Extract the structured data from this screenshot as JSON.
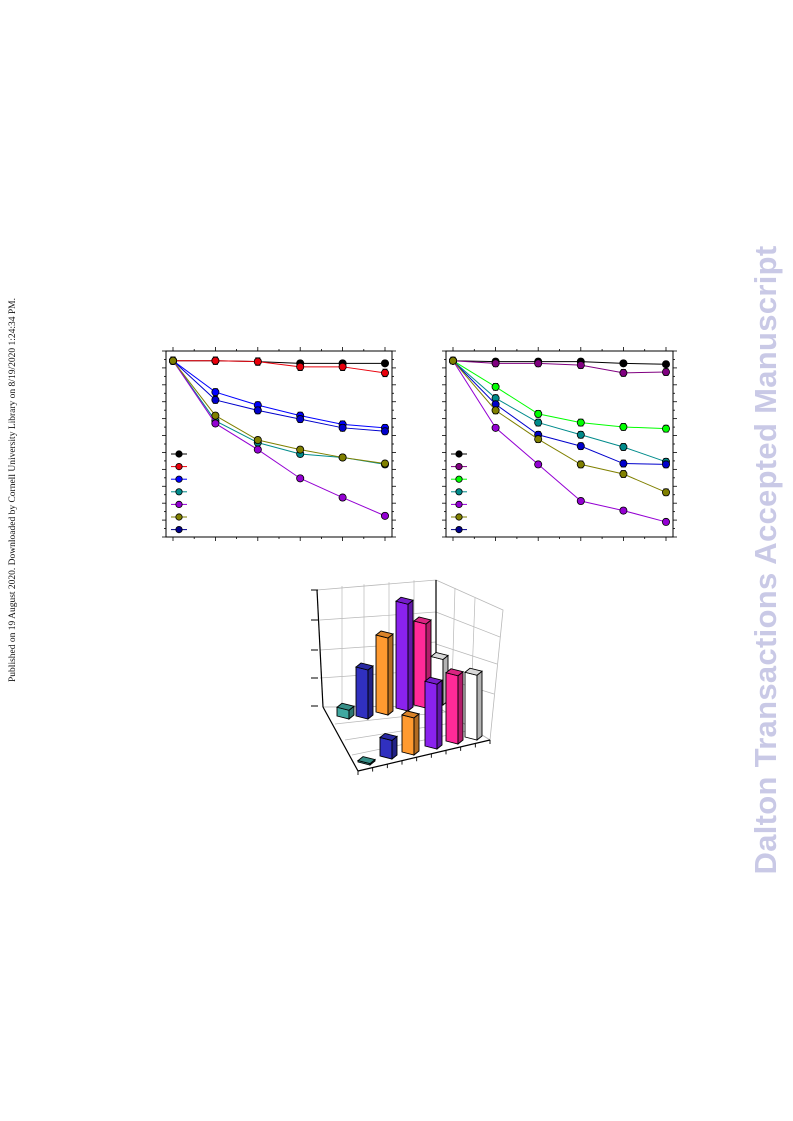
{
  "side_note": "Published on 19 August 2020. Downloaded by Cornell University Library on 8/19/2020 1:24:34 PM.",
  "watermark": "Dalton Transactions Accepted Manuscript",
  "chart_data": [
    {
      "type": "line",
      "x": [
        0,
        1,
        2,
        3,
        4,
        5
      ],
      "ylim": [
        0,
        1.05
      ],
      "grid": false,
      "legend": "bottom-left",
      "series": [
        {
          "color": "#000000",
          "values": [
            1.0,
            1.0,
            0.995,
            0.985,
            0.985,
            0.985
          ],
          "err": 0.015
        },
        {
          "color": "#e8000b",
          "values": [
            1.0,
            1.0,
            0.995,
            0.965,
            0.965,
            0.93
          ],
          "err": 0.02
        },
        {
          "color": "#0000ff",
          "values": [
            1.0,
            0.82,
            0.745,
            0.685,
            0.635,
            0.615
          ],
          "err": 0.018
        },
        {
          "color": "#0000cc",
          "values": [
            1.0,
            0.775,
            0.715,
            0.665,
            0.615,
            0.595
          ],
          "err": 0.018
        },
        {
          "color": "#008b8b",
          "values": [
            1.0,
            0.655,
            0.53,
            0.465,
            0.445,
            0.405
          ],
          "err": 0.015
        },
        {
          "color": "#9400d3",
          "values": [
            1.0,
            0.64,
            0.49,
            0.325,
            0.215,
            0.11
          ],
          "err": 0.015
        },
        {
          "color": "#808000",
          "values": [
            1.0,
            0.685,
            0.545,
            0.49,
            0.445,
            0.41
          ],
          "err": 0.015
        }
      ],
      "legend_markers": [
        "#000000",
        "#e8000b",
        "#0000ff",
        "#008b8b",
        "#9400d3",
        "#808000",
        "#00008b"
      ]
    },
    {
      "type": "line",
      "x": [
        0,
        1,
        2,
        3,
        4,
        5
      ],
      "ylim": [
        0,
        1.05
      ],
      "grid": false,
      "legend": "bottom-left",
      "series": [
        {
          "color": "#000000",
          "values": [
            1.0,
            0.995,
            0.995,
            0.995,
            0.985,
            0.98
          ],
          "err": 0.015
        },
        {
          "color": "#800080",
          "values": [
            1.0,
            0.985,
            0.985,
            0.975,
            0.93,
            0.935
          ],
          "err": 0.018
        },
        {
          "color": "#00ff00",
          "values": [
            1.0,
            0.85,
            0.695,
            0.645,
            0.62,
            0.61
          ],
          "err": 0.018
        },
        {
          "color": "#008b8b",
          "values": [
            1.0,
            0.785,
            0.645,
            0.575,
            0.505,
            0.42
          ],
          "err": 0.018
        },
        {
          "color": "#0000cc",
          "values": [
            1.0,
            0.75,
            0.575,
            0.51,
            0.41,
            0.405
          ],
          "err": 0.018
        },
        {
          "color": "#9400d3",
          "values": [
            1.0,
            0.615,
            0.405,
            0.195,
            0.14,
            0.075
          ],
          "err": 0.015
        },
        {
          "color": "#808000",
          "values": [
            1.0,
            0.715,
            0.55,
            0.405,
            0.35,
            0.245
          ],
          "err": 0.018
        }
      ],
      "legend_markers": [
        "#000000",
        "#800080",
        "#00ff00",
        "#008b8b",
        "#9400d3",
        "#808000",
        "#00008b"
      ]
    },
    {
      "type": "bar",
      "grid": true,
      "series": [
        {
          "row": "front",
          "values": [
            0.4,
            5.3,
            10.6,
            18.5,
            19.5,
            18.5,
            15.6
          ]
        },
        {
          "row": "back",
          "values": [
            2.5,
            14.0,
            22.0,
            30.5,
            24.0,
            13.0
          ]
        }
      ],
      "colors": [
        "#40a8a0",
        "#3030c0",
        "#ff9a30",
        "#8a22ee",
        "#ff2a98",
        "#ffffff"
      ]
    }
  ]
}
